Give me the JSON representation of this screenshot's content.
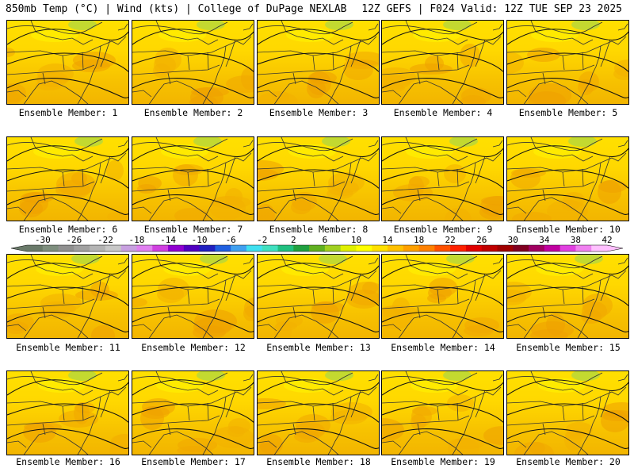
{
  "header": {
    "left": "850mb Temp (°C) | Wind (kts) | College of DuPage NEXLAB",
    "right": "12Z GEFS | F024 Valid: 12Z TUE SEP 23 2025"
  },
  "members": [
    "Ensemble Member: 1",
    "Ensemble Member: 2",
    "Ensemble Member: 3",
    "Ensemble Member: 4",
    "Ensemble Member: 5",
    "Ensemble Member: 6",
    "Ensemble Member: 7",
    "Ensemble Member: 8",
    "Ensemble Member: 9",
    "Ensemble Member: 10",
    "Ensemble Member: 11",
    "Ensemble Member: 12",
    "Ensemble Member: 13",
    "Ensemble Member: 14",
    "Ensemble Member: 15",
    "Ensemble Member: 16",
    "Ensemble Member: 17",
    "Ensemble Member: 18",
    "Ensemble Member: 19",
    "Ensemble Member: 20"
  ],
  "colorbar": {
    "ticks": [
      "-30",
      "-26",
      "-22",
      "-18",
      "-14",
      "-10",
      "-6",
      "-2",
      "2",
      "6",
      "10",
      "14",
      "18",
      "22",
      "26",
      "30",
      "34",
      "38",
      "42"
    ],
    "colors": [
      "#6a7a6a",
      "#7e8e7e",
      "#909090",
      "#a0a0a0",
      "#b4b4b4",
      "#c8c8c8",
      "#c8a0e0",
      "#e080f0",
      "#d040e0",
      "#9000d0",
      "#5000c0",
      "#2020c0",
      "#2060e0",
      "#40a0f0",
      "#40e0f0",
      "#40e0c0",
      "#20c080",
      "#20a040",
      "#60b020",
      "#a0d020",
      "#e0f000",
      "#ffff00",
      "#ffe000",
      "#ffc000",
      "#ffa000",
      "#ff8000",
      "#ff5000",
      "#ff2000",
      "#e00000",
      "#c00000",
      "#a00000",
      "#800020",
      "#a00060",
      "#c000a0",
      "#e040e0",
      "#f080f0",
      "#ffc0ff"
    ]
  }
}
